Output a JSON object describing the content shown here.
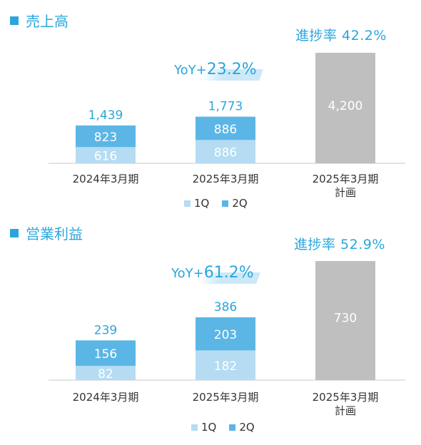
{
  "sales": {
    "title": "売上高",
    "progress_label": "進捗率 42.2%",
    "yoy_prefix": "YoY+",
    "yoy_value": "23.2%"
  },
  "op_profit": {
    "title": "営業利益",
    "progress_label": "進捗率 52.9%",
    "yoy_prefix": "YoY+",
    "yoy_value": "61.2%"
  },
  "legend": {
    "q1": "1Q",
    "q2": "2Q"
  },
  "colors": {
    "q1": "#b5dcf3",
    "q2": "#5bb6e6",
    "plan": "#bfbfbf",
    "accent": "#2aa6dc",
    "axis": "#c8c8c8"
  },
  "chart_data": [
    {
      "type": "bar",
      "title": "売上高",
      "stacked": true,
      "categories": [
        "2024年3月期",
        "2025年3月期",
        "2025年3月期\n計画"
      ],
      "series": [
        {
          "name": "1Q",
          "values": [
            616,
            886,
            null
          ]
        },
        {
          "name": "2Q",
          "values": [
            823,
            886,
            null
          ]
        }
      ],
      "plan": {
        "category": "2025年3月期\n計画",
        "value": 4200,
        "label": "4,200"
      },
      "totals": [
        1439,
        1773,
        null
      ],
      "total_labels": [
        "1,439",
        "1,773",
        ""
      ],
      "value_labels": {
        "1Q": [
          "616",
          "886",
          ""
        ],
        "2Q": [
          "823",
          "886",
          ""
        ]
      },
      "ylim": [
        0,
        4200
      ],
      "grid": false
    },
    {
      "type": "bar",
      "title": "営業利益",
      "stacked": true,
      "categories": [
        "2024年3月期",
        "2025年3月期",
        "2025年3月期\n計画"
      ],
      "series": [
        {
          "name": "1Q",
          "values": [
            82,
            182,
            null
          ]
        },
        {
          "name": "2Q",
          "values": [
            156,
            203,
            null
          ]
        }
      ],
      "plan": {
        "category": "2025年3月期\n計画",
        "value": 730,
        "label": "730"
      },
      "totals": [
        239,
        386,
        null
      ],
      "total_labels": [
        "239",
        "386",
        ""
      ],
      "value_labels": {
        "1Q": [
          "82",
          "182",
          ""
        ],
        "2Q": [
          "156",
          "203",
          ""
        ]
      },
      "ylim": [
        0,
        730
      ],
      "grid": false
    }
  ]
}
